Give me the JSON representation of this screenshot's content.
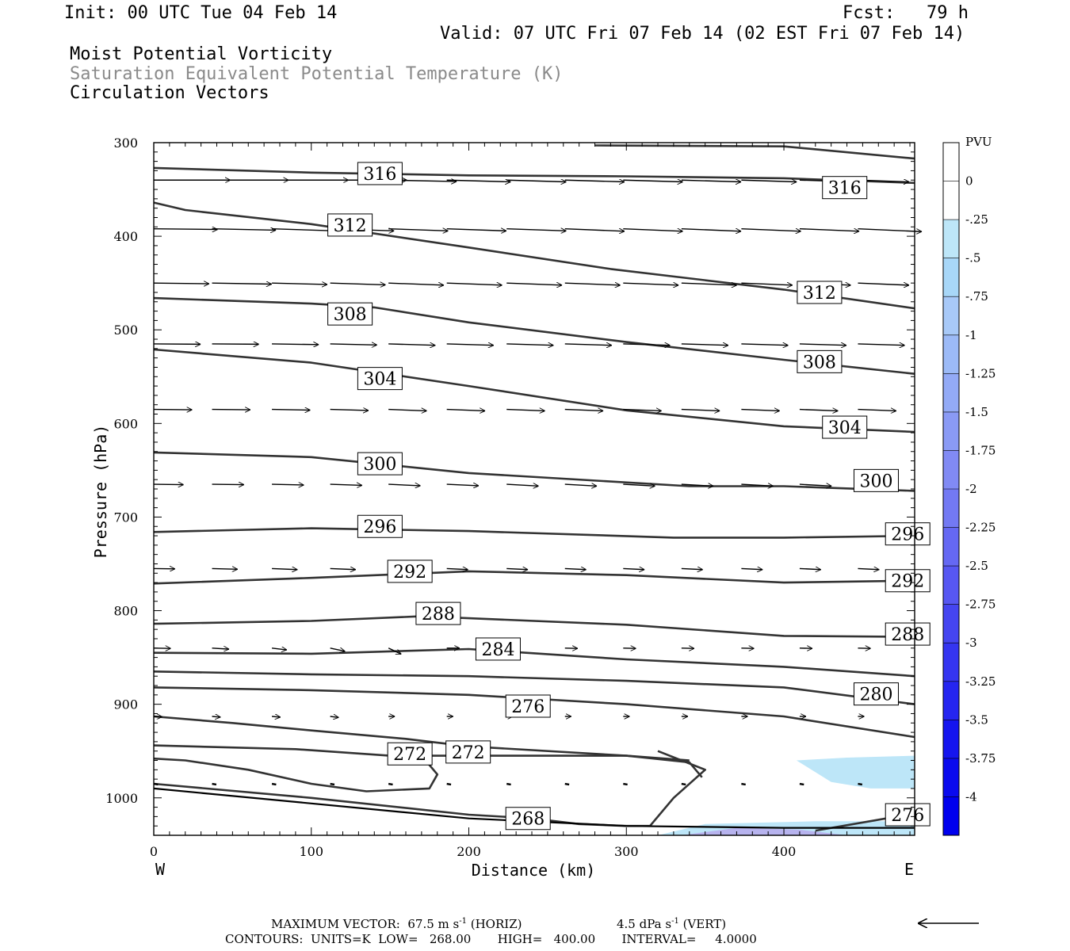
{
  "header": {
    "init": "Init: 00 UTC Tue 04 Feb 14",
    "fcst": "Fcst:   79 h",
    "valid": "Valid: 07 UTC Fri 07 Feb 14 (02 EST Fri 07 Feb 14)",
    "fields": [
      "Moist Potential Vorticity",
      "Saturation Equivalent Potential Temperature (K)",
      "Circulation Vectors"
    ]
  },
  "footer": {
    "max_vector_prefix": "MAXIMUM VECTOR:  67.5 m s",
    "horiz_suffix": " (HORIZ)",
    "vert_prefix": "4.5 dPa s",
    "vert_suffix": " (VERT)",
    "exp": "-1",
    "contours": "CONTOURS:  UNITS=K  LOW=   268.00       HIGH=   400.00       INTERVAL=     4.0000"
  },
  "colors": {
    "contour": "#333333",
    "vector": "#000000",
    "light_blue": "#bde6f8",
    "purple_core": "#b7b3ee"
  },
  "chart_data": {
    "type": "contour",
    "xlabel": "Distance (km)",
    "ylabel": "Pressure (hPa)",
    "xlim": [
      0,
      483
    ],
    "ylim": [
      1040,
      300
    ],
    "x_ticks": [
      0,
      100,
      200,
      300,
      400
    ],
    "y_ticks": [
      300,
      400,
      500,
      600,
      700,
      800,
      900,
      1000
    ],
    "x_end_labels": {
      "left": "W",
      "right": "E"
    },
    "contour_lines": [
      {
        "label": "316",
        "points": [
          [
            0,
            327
          ],
          [
            100,
            332
          ],
          [
            200,
            335
          ],
          [
            300,
            336
          ],
          [
            400,
            338
          ],
          [
            483,
            343
          ]
        ],
        "labels_at": [
          [
            130,
            333
          ],
          [
            425,
            348
          ]
        ]
      },
      {
        "label": "316",
        "points": [
          [
            280,
            303
          ],
          [
            400,
            304
          ],
          [
            483,
            317
          ]
        ]
      },
      {
        "label": "312",
        "points": [
          [
            0,
            364
          ],
          [
            20,
            372
          ],
          [
            100,
            387
          ],
          [
            200,
            412
          ],
          [
            290,
            435
          ],
          [
            400,
            457
          ],
          [
            483,
            477
          ]
        ],
        "labels_at": [
          [
            111,
            388
          ],
          [
            409,
            460
          ]
        ]
      },
      {
        "label": "308",
        "points": [
          [
            0,
            466
          ],
          [
            100,
            472
          ],
          [
            140,
            476
          ],
          [
            200,
            492
          ],
          [
            300,
            513
          ],
          [
            400,
            532
          ],
          [
            483,
            547
          ]
        ],
        "labels_at": [
          [
            111,
            483
          ],
          [
            409,
            534
          ]
        ]
      },
      {
        "label": "304",
        "points": [
          [
            0,
            521
          ],
          [
            100,
            535
          ],
          [
            200,
            560
          ],
          [
            300,
            586
          ],
          [
            400,
            603
          ],
          [
            483,
            609
          ]
        ],
        "labels_at": [
          [
            130,
            552
          ],
          [
            425,
            604
          ]
        ]
      },
      {
        "label": "300",
        "points": [
          [
            0,
            631
          ],
          [
            100,
            636
          ],
          [
            200,
            653
          ],
          [
            340,
            667
          ],
          [
            400,
            667
          ],
          [
            483,
            672
          ]
        ],
        "labels_at": [
          [
            130,
            643
          ],
          [
            445,
            661
          ]
        ]
      },
      {
        "label": "296",
        "points": [
          [
            0,
            716
          ],
          [
            100,
            712
          ],
          [
            200,
            715
          ],
          [
            330,
            722
          ],
          [
            400,
            722
          ],
          [
            483,
            720
          ]
        ],
        "labels_at": [
          [
            130,
            710
          ],
          [
            465,
            718
          ]
        ]
      },
      {
        "label": "292",
        "points": [
          [
            0,
            771
          ],
          [
            100,
            765
          ],
          [
            200,
            758
          ],
          [
            300,
            762
          ],
          [
            400,
            770
          ],
          [
            483,
            768
          ]
        ],
        "labels_at": [
          [
            149,
            758
          ],
          [
            465,
            768
          ]
        ]
      },
      {
        "label": "288",
        "points": [
          [
            0,
            814
          ],
          [
            100,
            811
          ],
          [
            170,
            806
          ],
          [
            300,
            815
          ],
          [
            400,
            827
          ],
          [
            483,
            828
          ]
        ],
        "labels_at": [
          [
            167,
            803
          ],
          [
            465,
            825
          ]
        ]
      },
      {
        "label": "284",
        "points": [
          [
            0,
            845
          ],
          [
            100,
            846
          ],
          [
            200,
            841
          ],
          [
            300,
            852
          ],
          [
            400,
            860
          ],
          [
            483,
            870
          ]
        ],
        "labels_at": [
          [
            205,
            841
          ]
        ]
      },
      {
        "label": "280",
        "points": [
          [
            0,
            865
          ],
          [
            100,
            868
          ],
          [
            200,
            870
          ],
          [
            300,
            875
          ],
          [
            400,
            882
          ],
          [
            483,
            900
          ]
        ],
        "labels_at": [
          [
            445,
            889
          ]
        ]
      },
      {
        "label": "276",
        "points": [
          [
            0,
            882
          ],
          [
            100,
            885
          ],
          [
            200,
            890
          ],
          [
            300,
            900
          ],
          [
            400,
            913
          ],
          [
            483,
            935
          ]
        ],
        "labels_at": [
          [
            224,
            902
          ]
        ]
      },
      {
        "label": "272",
        "points": [
          [
            0,
            913
          ],
          [
            50,
            920
          ],
          [
            100,
            928
          ],
          [
            160,
            937
          ],
          [
            200,
            945
          ],
          [
            300,
            955
          ],
          [
            340,
            960
          ]
        ]
      },
      {
        "label": "272",
        "points": [
          [
            0,
            944
          ],
          [
            90,
            948
          ],
          [
            150,
            955
          ],
          [
            300,
            955
          ],
          [
            340,
            962
          ],
          [
            348,
            978
          ]
        ],
        "labels_at": [
          [
            149,
            953
          ],
          [
            186,
            951
          ]
        ]
      },
      {
        "label": "268",
        "points": [
          [
            0,
            958
          ],
          [
            20,
            960
          ],
          [
            60,
            970
          ],
          [
            100,
            985
          ],
          [
            135,
            993
          ],
          [
            175,
            990
          ],
          [
            180,
            975
          ],
          [
            170,
            955
          ]
        ]
      },
      {
        "label": "268",
        "points": [
          [
            0,
            985
          ],
          [
            100,
            1000
          ],
          [
            200,
            1018
          ],
          [
            240,
            1022
          ],
          [
            270,
            1028
          ],
          [
            300,
            1030
          ],
          [
            315,
            1030
          ],
          [
            330,
            1000
          ],
          [
            350,
            970
          ],
          [
            320,
            950
          ]
        ],
        "labels_at": [
          [
            224,
            1022
          ]
        ]
      },
      {
        "label": "276",
        "points": [
          [
            420,
            1035
          ],
          [
            465,
            1022
          ],
          [
            483,
            1020
          ]
        ],
        "labels_at": [
          [
            465,
            1018
          ]
        ]
      }
    ],
    "ground_line_points": [
      [
        0,
        990
      ],
      [
        100,
        1006
      ],
      [
        200,
        1022
      ],
      [
        300,
        1030
      ],
      [
        400,
        1032
      ],
      [
        483,
        1032
      ]
    ],
    "shaded_regions": [
      {
        "pvu": -0.5,
        "points": [
          [
            408,
            960
          ],
          [
            440,
            957
          ],
          [
            483,
            955
          ],
          [
            483,
            990
          ],
          [
            455,
            990
          ],
          [
            430,
            983
          ]
        ]
      },
      {
        "pvu": -0.5,
        "points": [
          [
            320,
            1040
          ],
          [
            350,
            1028
          ],
          [
            420,
            1025
          ],
          [
            483,
            1025
          ],
          [
            483,
            1040
          ]
        ]
      },
      {
        "pvu": -1.0,
        "points": [
          [
            335,
            1040
          ],
          [
            370,
            1032
          ],
          [
            410,
            1034
          ],
          [
            440,
            1040
          ]
        ]
      }
    ],
    "vector_rows": [
      {
        "p": 340,
        "xs": [
          0,
          37,
          75,
          112,
          149,
          186,
          224,
          261,
          298,
          335,
          373,
          410,
          447
        ],
        "dx": [
          36,
          36,
          36,
          36,
          32,
          30,
          28,
          28,
          28,
          28,
          26,
          26,
          24
        ],
        "dp": [
          0,
          0,
          0,
          0,
          4,
          5,
          5,
          5,
          5,
          5,
          5,
          5,
          5
        ]
      },
      {
        "p": 392,
        "xs": [
          0,
          37,
          75,
          112,
          149,
          186,
          224,
          261,
          298,
          335,
          373,
          410,
          447
        ],
        "dx": [
          30,
          30,
          30,
          30,
          28,
          28,
          28,
          28,
          28,
          28,
          28,
          28,
          30
        ],
        "dp": [
          2,
          4,
          6,
          6,
          6,
          6,
          6,
          7,
          7,
          7,
          7,
          7,
          8
        ]
      },
      {
        "p": 450,
        "xs": [
          0,
          37,
          75,
          112,
          149,
          186,
          224,
          261,
          298,
          335,
          373,
          410,
          447
        ],
        "dx": [
          26,
          28,
          26,
          26,
          26,
          26,
          26,
          26,
          26,
          26,
          24,
          24,
          24
        ],
        "dp": [
          2,
          3,
          4,
          5,
          6,
          6,
          6,
          6,
          6,
          6,
          6,
          6,
          6
        ]
      },
      {
        "p": 515,
        "xs": [
          0,
          37,
          75,
          112,
          149,
          186,
          224,
          261,
          298,
          335,
          373,
          410,
          447
        ],
        "dx": [
          22,
          22,
          22,
          22,
          22,
          22,
          22,
          22,
          22,
          22,
          22,
          22,
          22
        ],
        "dp": [
          1,
          1,
          2,
          3,
          4,
          4,
          4,
          4,
          4,
          4,
          4,
          4,
          4
        ]
      },
      {
        "p": 585,
        "xs": [
          0,
          37,
          75,
          112,
          149,
          186,
          224,
          261,
          298,
          335,
          373,
          410,
          447
        ],
        "dx": [
          18,
          18,
          18,
          18,
          18,
          18,
          18,
          18,
          18,
          18,
          18,
          18,
          18
        ],
        "dp": [
          1,
          1,
          2,
          3,
          4,
          4,
          4,
          4,
          4,
          4,
          4,
          4,
          4
        ]
      },
      {
        "p": 665,
        "xs": [
          0,
          37,
          75,
          112,
          149,
          186,
          224,
          261,
          298,
          335,
          373,
          410,
          447
        ],
        "dx": [
          14,
          15,
          15,
          15,
          15,
          15,
          15,
          15,
          15,
          15,
          15,
          15,
          15
        ],
        "dp": [
          1,
          1,
          2,
          3,
          4,
          4,
          5,
          5,
          5,
          5,
          5,
          5,
          5
        ]
      },
      {
        "p": 755,
        "xs": [
          0,
          37,
          75,
          112,
          149,
          186,
          224,
          261,
          298,
          335,
          373,
          410,
          447
        ],
        "dx": [
          10,
          12,
          12,
          12,
          12,
          10,
          10,
          10,
          10,
          10,
          10,
          10,
          10
        ],
        "dp": [
          1,
          2,
          3,
          3,
          3,
          3,
          3,
          3,
          3,
          3,
          3,
          3,
          3
        ]
      },
      {
        "p": 840,
        "xs": [
          0,
          37,
          75,
          112,
          149,
          186,
          224,
          261,
          298,
          335,
          373,
          410,
          447
        ],
        "dx": [
          8,
          8,
          7,
          7,
          6,
          6,
          6,
          6,
          6,
          6,
          6,
          6,
          6
        ],
        "dp": [
          1,
          3,
          5,
          9,
          17,
          0,
          0,
          1,
          1,
          1,
          1,
          1,
          1
        ]
      },
      {
        "p": 913,
        "xs": [
          0,
          37,
          75,
          112,
          149,
          186,
          224,
          261,
          298,
          335,
          373,
          410,
          447
        ],
        "dx": [
          4,
          4,
          4,
          4,
          3,
          3,
          3,
          3,
          3,
          3,
          3,
          3,
          3
        ],
        "dp": [
          1,
          2,
          2,
          3,
          0,
          0,
          0,
          0,
          0,
          0,
          0,
          0,
          0
        ]
      },
      {
        "p": 985,
        "xs": [
          0,
          37,
          75,
          112,
          149,
          186,
          224,
          261,
          298,
          335,
          373,
          410,
          447
        ],
        "dx": [
          2,
          2,
          2,
          2,
          2,
          2,
          2,
          2,
          2,
          2,
          2,
          2,
          2
        ],
        "dp": [
          2,
          2,
          2,
          2,
          2,
          2,
          2,
          2,
          2,
          2,
          2,
          2,
          2
        ]
      }
    ],
    "reference_vector": {
      "direction": "left"
    },
    "colorbar": {
      "unit": "PVU",
      "levels": [
        "0",
        "-.25",
        "-.5",
        "-.75",
        "-1",
        "-1.25",
        "-1.5",
        "-1.75",
        "-2",
        "-2.25",
        "-2.5",
        "-2.75",
        "-3",
        "-3.25",
        "-3.5",
        "-3.75",
        "-4"
      ],
      "colors": [
        "#ffffff",
        "#ffffff",
        "#bde6f8",
        "#a8d7f8",
        "#a8c9f8",
        "#9cbaf7",
        "#93aaf6",
        "#8a9af5",
        "#818af4",
        "#7379f3",
        "#6568f3",
        "#5757f2",
        "#4545f1",
        "#3535f1",
        "#2525f0",
        "#1515ef",
        "#0a0aee",
        "#0000ee"
      ]
    }
  }
}
